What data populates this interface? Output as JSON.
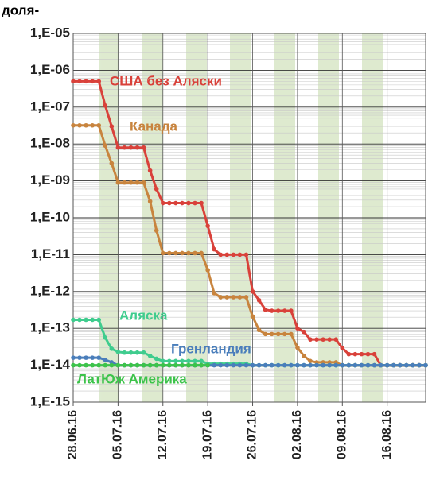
{
  "chart_data": {
    "type": "line",
    "y_label": "доля-",
    "log_scale": true,
    "grid": true,
    "ylim": [
      1e-15,
      1e-05
    ],
    "yticks": [
      {
        "value": 1e-15,
        "label": "1,E-15"
      },
      {
        "value": 1e-14,
        "label": "1,E-14"
      },
      {
        "value": 1e-13,
        "label": "1,E-13"
      },
      {
        "value": 1e-12,
        "label": "1,E-12"
      },
      {
        "value": 1e-11,
        "label": "1,E-11"
      },
      {
        "value": 1e-10,
        "label": "1,E-10"
      },
      {
        "value": 1e-09,
        "label": "1,E-09"
      },
      {
        "value": 1e-08,
        "label": "1,E-08"
      },
      {
        "value": 1e-07,
        "label": "1,E-07"
      },
      {
        "value": 1e-06,
        "label": "1,E-06"
      },
      {
        "value": 1e-05,
        "label": "1,E-05"
      }
    ],
    "xlim": [
      "2016-06-28",
      "2016-08-22"
    ],
    "xticks": [
      {
        "value": "2016-06-28",
        "label": "28.06.16"
      },
      {
        "value": "2016-07-05",
        "label": "05.07.16"
      },
      {
        "value": "2016-07-12",
        "label": "12.07.16"
      },
      {
        "value": "2016-07-19",
        "label": "19.07.16"
      },
      {
        "value": "2016-07-26",
        "label": "26.07.16"
      },
      {
        "value": "2016-08-02",
        "label": "02.08.16"
      },
      {
        "value": "2016-08-09",
        "label": "09.08.16"
      },
      {
        "value": "2016-08-16",
        "label": "16.08.16"
      }
    ],
    "x": [
      "2016-06-28",
      "2016-06-29",
      "2016-06-30",
      "2016-07-01",
      "2016-07-02",
      "2016-07-03",
      "2016-07-04",
      "2016-07-05",
      "2016-07-06",
      "2016-07-07",
      "2016-07-08",
      "2016-07-09",
      "2016-07-10",
      "2016-07-11",
      "2016-07-12",
      "2016-07-13",
      "2016-07-14",
      "2016-07-15",
      "2016-07-16",
      "2016-07-17",
      "2016-07-18",
      "2016-07-19",
      "2016-07-20",
      "2016-07-21",
      "2016-07-22",
      "2016-07-23",
      "2016-07-24",
      "2016-07-25",
      "2016-07-26",
      "2016-07-27",
      "2016-07-28",
      "2016-07-29",
      "2016-07-30",
      "2016-07-31",
      "2016-08-01",
      "2016-08-02",
      "2016-08-03",
      "2016-08-04",
      "2016-08-05",
      "2016-08-06",
      "2016-08-07",
      "2016-08-08",
      "2016-08-09",
      "2016-08-10",
      "2016-08-11",
      "2016-08-12",
      "2016-08-13",
      "2016-08-14",
      "2016-08-15",
      "2016-08-16",
      "2016-08-17",
      "2016-08-18",
      "2016-08-19",
      "2016-08-20",
      "2016-08-21",
      "2016-08-22"
    ],
    "series": [
      {
        "name": "США без Аляски",
        "color": "#d9413a",
        "values": [
          5e-07,
          5e-07,
          5e-07,
          5e-07,
          5e-07,
          1.1e-07,
          3e-08,
          8e-09,
          8e-09,
          8e-09,
          8e-09,
          8e-09,
          1.9e-09,
          6e-10,
          2.5e-10,
          2.5e-10,
          2.5e-10,
          2.5e-10,
          2.5e-10,
          2.5e-10,
          2.5e-10,
          6e-11,
          1.4e-11,
          1e-11,
          1e-11,
          1e-11,
          1e-11,
          1e-11,
          1e-12,
          5.8e-13,
          3.2e-13,
          3e-13,
          3e-13,
          3e-13,
          3e-13,
          1e-13,
          8e-14,
          5e-14,
          5e-14,
          5e-14,
          5e-14,
          5e-14,
          2.9e-14,
          2e-14,
          2e-14,
          2e-14,
          2e-14,
          2e-14,
          1e-14,
          1e-14,
          1e-14,
          1e-14,
          1e-14,
          1e-14,
          1e-14,
          1e-14
        ]
      },
      {
        "name": "Канада",
        "color": "#c8843e",
        "values": [
          3.2e-08,
          3.2e-08,
          3.2e-08,
          3.2e-08,
          3.2e-08,
          9e-09,
          3e-09,
          9e-10,
          9e-10,
          9e-10,
          9e-10,
          9e-10,
          2.8e-10,
          4.5e-11,
          1.1e-11,
          1.1e-11,
          1.1e-11,
          1.1e-11,
          1.1e-11,
          1.1e-11,
          1.1e-11,
          3.8e-12,
          9e-13,
          7e-13,
          7e-13,
          7e-13,
          7e-13,
          7e-13,
          2.1e-13,
          9e-14,
          7e-14,
          7e-14,
          7e-14,
          7e-14,
          7e-14,
          3e-14,
          1.8e-14,
          1.3e-14,
          1.2e-14,
          1.2e-14,
          1.2e-14,
          1.2e-14,
          1e-14,
          1e-14,
          1e-14,
          1e-14,
          1e-14,
          1e-14,
          1e-14,
          1e-14,
          1e-14,
          1e-14,
          1e-14,
          1e-14,
          1e-14,
          1e-14
        ]
      },
      {
        "name": "Аляска",
        "color": "#3fcc8e",
        "values": [
          1.7e-13,
          1.7e-13,
          1.7e-13,
          1.7e-13,
          1.7e-13,
          5.6e-14,
          2.8e-14,
          2.3e-14,
          2.2e-14,
          2.2e-14,
          2.2e-14,
          2.2e-14,
          1.8e-14,
          1.5e-14,
          1.3e-14,
          1.3e-14,
          1.3e-14,
          1.3e-14,
          1.3e-14,
          1.3e-14,
          1.3e-14,
          1.1e-14,
          1.1e-14,
          1.1e-14,
          1.1e-14,
          1.1e-14,
          1.1e-14,
          1.1e-14,
          1e-14,
          1e-14,
          1e-14,
          1e-14,
          1e-14,
          1e-14,
          1e-14,
          1e-14,
          1e-14,
          1e-14,
          1e-14,
          1e-14,
          1e-14,
          1e-14,
          1e-14,
          1e-14,
          1e-14,
          1e-14,
          1e-14,
          1e-14,
          1e-14,
          1e-14,
          1e-14,
          1e-14,
          1e-14,
          1e-14,
          1e-14,
          1e-14
        ]
      },
      {
        "name": "Гренландия",
        "color": "#4a7ebb",
        "values": [
          1.6e-14,
          1.6e-14,
          1.6e-14,
          1.6e-14,
          1.6e-14,
          1.4e-14,
          1.2e-14,
          1e-14,
          1e-14,
          1e-14,
          1e-14,
          1e-14,
          1e-14,
          1e-14,
          1e-14,
          1e-14,
          1e-14,
          1e-14,
          1e-14,
          1e-14,
          1e-14,
          1e-14,
          1e-14,
          1e-14,
          1e-14,
          1e-14,
          1e-14,
          1e-14,
          1e-14,
          1e-14,
          1e-14,
          1e-14,
          1e-14,
          1e-14,
          1e-14,
          1e-14,
          1e-14,
          1e-14,
          1e-14,
          1e-14,
          1e-14,
          1e-14,
          1e-14,
          1e-14,
          1e-14,
          1e-14,
          1e-14,
          1e-14,
          1e-14,
          1e-14,
          1e-14,
          1e-14,
          1e-14,
          1e-14,
          1e-14,
          1e-14
        ]
      },
      {
        "name": "ЛатЮж Америка",
        "color": "#3cc34a",
        "values": [
          1e-14,
          1e-14,
          1e-14,
          1e-14,
          1e-14,
          1e-14,
          1e-14,
          1e-14,
          1e-14,
          1e-14,
          1e-14,
          1e-14,
          1e-14,
          1e-14,
          1e-14,
          1e-14,
          1e-14,
          1e-14,
          1e-14,
          1e-14,
          1e-14,
          1e-14,
          null,
          null,
          null,
          null,
          null,
          null,
          null,
          null,
          null,
          null,
          null,
          null,
          null,
          null,
          null,
          null,
          null,
          null,
          null,
          null,
          null,
          null,
          null,
          null,
          null,
          null,
          null,
          null,
          null,
          null,
          null,
          null,
          null,
          null
        ]
      }
    ]
  }
}
